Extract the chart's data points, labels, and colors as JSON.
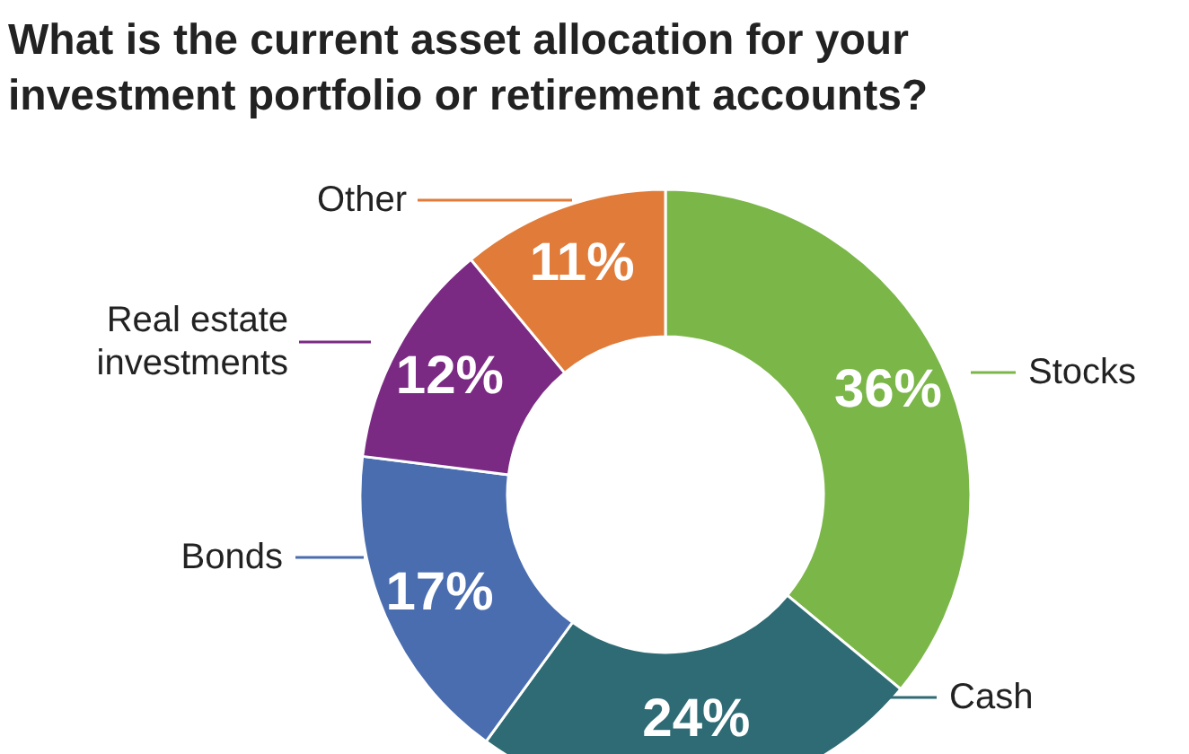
{
  "chart_data": {
    "type": "donut",
    "title": "What is the current asset allocation for your investment portfolio or retirement accounts?",
    "categories": [
      "Stocks",
      "Cash",
      "Bonds",
      "Real estate investments",
      "Other"
    ],
    "values": [
      36,
      24,
      17,
      12,
      11
    ],
    "colors": [
      "#7ab648",
      "#2e6b74",
      "#4a6db0",
      "#7b2a83",
      "#e07b39"
    ],
    "value_labels": [
      "36%",
      "24%",
      "17%",
      "12%",
      "11%"
    ]
  }
}
